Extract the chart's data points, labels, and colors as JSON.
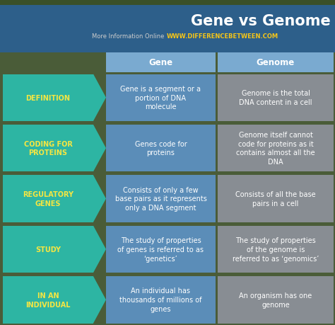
{
  "title": "Gene vs Genome",
  "subtitle_plain": "More Information Online",
  "subtitle_url": "WWW.DIFFERENCEBETWEEN.COM",
  "col1_header": "Gene",
  "col2_header": "Genome",
  "rows": [
    {
      "label": "DEFINITION",
      "gene_text": "Gene is a segment or a\nportion of DNA\nmolecule",
      "genome_text": "Genome is the total\nDNA content in a cell"
    },
    {
      "label": "CODING FOR\nPROTEINS",
      "gene_text": "Genes code for\nproteins",
      "genome_text": "Genome itself cannot\ncode for proteins as it\ncontains almost all the\nDNA"
    },
    {
      "label": "REGULATORY\nGENES",
      "gene_text": "Consists of only a few\nbase pairs as it represents\nonly a DNA segment",
      "genome_text": "Consists of all the base\npairs in a cell"
    },
    {
      "label": "STUDY",
      "gene_text": "The study of properties\nof genes is referred to as\n‘genetics’",
      "genome_text": "The study of properties\nof the genome is\nreferred to as ‘genomics’"
    },
    {
      "label": "IN AN\nINDIVIDUAL",
      "gene_text": "An individual has\nthousands of millions of\ngenes",
      "genome_text": "An organism has one\ngenome"
    }
  ],
  "colors": {
    "title_bg": "#2d5f8a",
    "title_text": "#ffffff",
    "nature_strip": "#556b4a",
    "header_bg": "#7aaad0",
    "header_text": "#ffffff",
    "label_bg": "#2db5a3",
    "label_text": "#f5e642",
    "gene_bg": "#5b8db8",
    "gene_text": "#ffffff",
    "genome_bg": "#888d93",
    "genome_text": "#ffffff",
    "bg_between": "#4a5e3a",
    "subtitle_plain": "#cccccc",
    "subtitle_url": "#f5c518"
  },
  "figsize": [
    4.74,
    4.6
  ],
  "dpi": 100
}
